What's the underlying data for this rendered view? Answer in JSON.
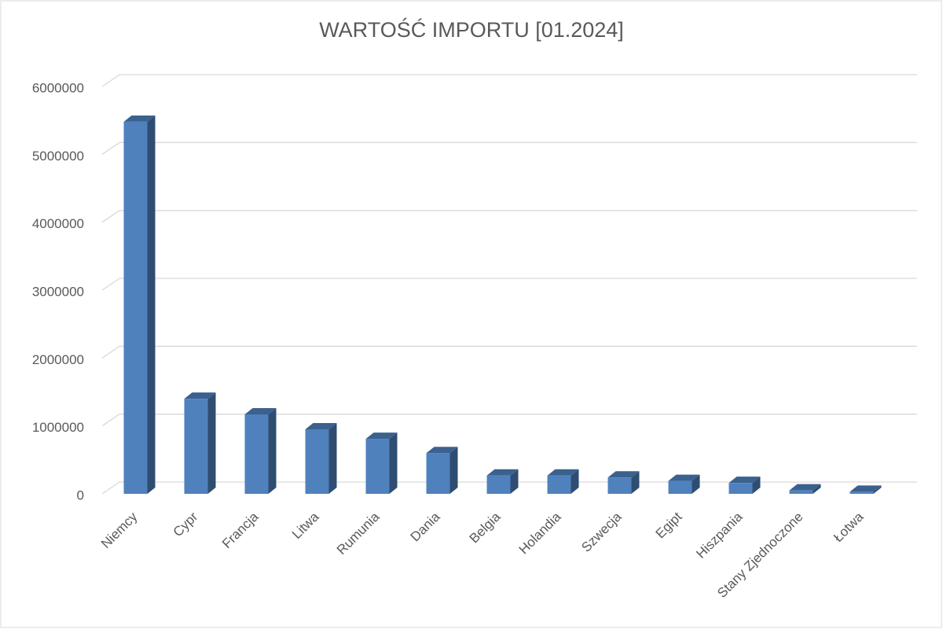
{
  "chart_data": {
    "type": "bar3d",
    "title": "WARTOŚĆ IMPORTU [01.2024]",
    "categories": [
      "Niemcy",
      "Cypr",
      "Francja",
      "Litwa",
      "Rumunia",
      "Dania",
      "Belgia",
      "Holandia",
      "Szwecja",
      "Egipt",
      "Hiszpania",
      "Stany Zjednoczone",
      "Łotwa"
    ],
    "values": [
      5480000,
      1400000,
      1170000,
      950000,
      810000,
      600000,
      270000,
      270000,
      240000,
      190000,
      160000,
      50000,
      30000
    ],
    "color": "#4f81bd",
    "ylim": [
      0,
      6000000
    ],
    "yticks": [
      0,
      1000000,
      2000000,
      3000000,
      4000000,
      5000000,
      6000000
    ],
    "grid": true
  }
}
